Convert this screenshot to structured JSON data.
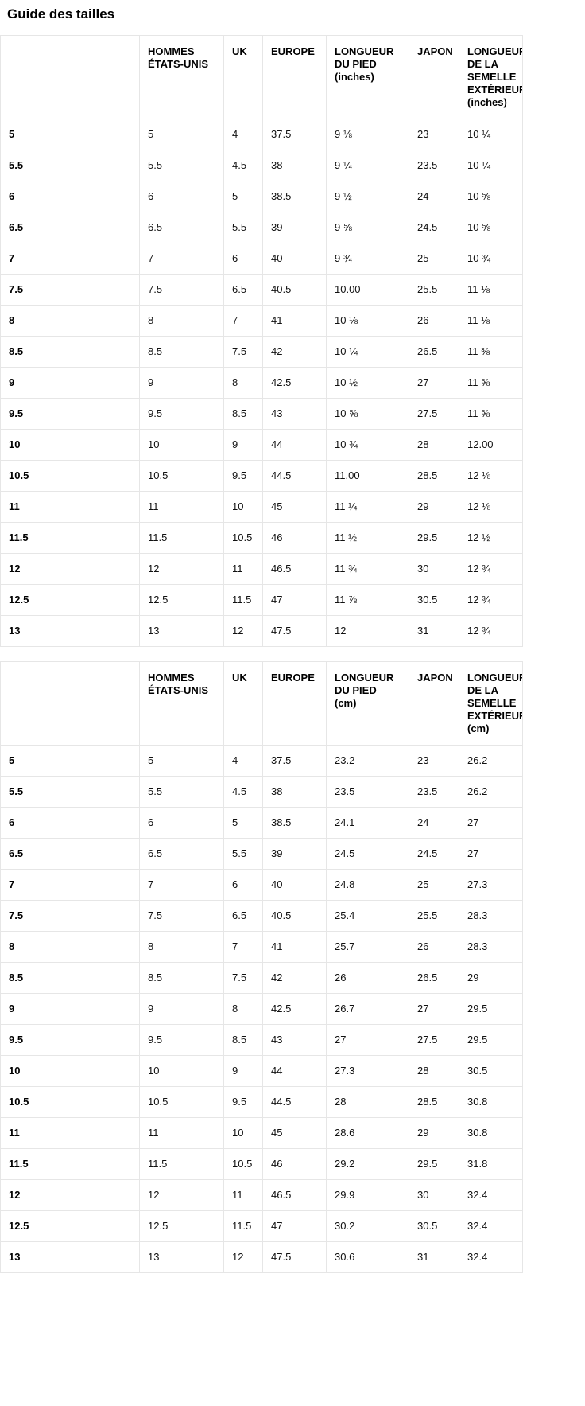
{
  "page": {
    "title": "Guide des tailles"
  },
  "tables": [
    {
      "id": "inches",
      "headers": [
        "",
        "HOMMES ÉTATS-UNIS",
        "UK",
        "EUROPE",
        "LONGUEUR DU PIED (inches)",
        "JAPON",
        "LONGUEUR DE LA SEMELLE EXTÉRIEURE (inches)"
      ],
      "rows": [
        [
          "5",
          "5",
          "4",
          "37.5",
          "9 ⅛",
          "23",
          "10 ¼"
        ],
        [
          "5.5",
          "5.5",
          "4.5",
          "38",
          "9 ¼",
          "23.5",
          "10 ¼"
        ],
        [
          "6",
          "6",
          "5",
          "38.5",
          "9 ½",
          "24",
          "10 ⅝"
        ],
        [
          "6.5",
          "6.5",
          "5.5",
          "39",
          "9 ⅝",
          "24.5",
          "10 ⅝"
        ],
        [
          "7",
          "7",
          "6",
          "40",
          "9 ¾",
          "25",
          "10 ¾"
        ],
        [
          "7.5",
          "7.5",
          "6.5",
          "40.5",
          "10.00",
          "25.5",
          "11 ⅛"
        ],
        [
          "8",
          "8",
          "7",
          "41",
          "10 ⅛",
          "26",
          "11 ⅛"
        ],
        [
          "8.5",
          "8.5",
          "7.5",
          "42",
          "10 ¼",
          "26.5",
          "11 ⅜"
        ],
        [
          "9",
          "9",
          "8",
          "42.5",
          "10 ½",
          "27",
          "11 ⅝"
        ],
        [
          "9.5",
          "9.5",
          "8.5",
          "43",
          "10 ⅝",
          "27.5",
          "11 ⅝"
        ],
        [
          "10",
          "10",
          "9",
          "44",
          "10 ¾",
          "28",
          "12.00"
        ],
        [
          "10.5",
          "10.5",
          "9.5",
          "44.5",
          "11.00",
          "28.5",
          "12 ⅛"
        ],
        [
          "11",
          "11",
          "10",
          "45",
          "11 ¼",
          "29",
          "12 ⅛"
        ],
        [
          "11.5",
          "11.5",
          "10.5",
          "46",
          "11 ½",
          "29.5",
          "12 ½"
        ],
        [
          "12",
          "12",
          "11",
          "46.5",
          "11 ¾",
          "30",
          "12 ¾"
        ],
        [
          "12.5",
          "12.5",
          "11.5",
          "47",
          "11 ⅞",
          "30.5",
          "12 ¾"
        ],
        [
          "13",
          "13",
          "12",
          "47.5",
          "12",
          "31",
          "12 ¾"
        ]
      ]
    },
    {
      "id": "cm",
      "headers": [
        "",
        "HOMMES ÉTATS-UNIS",
        "UK",
        "EUROPE",
        "LONGUEUR DU PIED (cm)",
        "JAPON",
        "LONGUEUR DE LA SEMELLE EXTÉRIEURE (cm)"
      ],
      "rows": [
        [
          "5",
          "5",
          "4",
          "37.5",
          "23.2",
          "23",
          "26.2"
        ],
        [
          "5.5",
          "5.5",
          "4.5",
          "38",
          "23.5",
          "23.5",
          "26.2"
        ],
        [
          "6",
          "6",
          "5",
          "38.5",
          "24.1",
          "24",
          "27"
        ],
        [
          "6.5",
          "6.5",
          "5.5",
          "39",
          "24.5",
          "24.5",
          "27"
        ],
        [
          "7",
          "7",
          "6",
          "40",
          "24.8",
          "25",
          "27.3"
        ],
        [
          "7.5",
          "7.5",
          "6.5",
          "40.5",
          "25.4",
          "25.5",
          "28.3"
        ],
        [
          "8",
          "8",
          "7",
          "41",
          "25.7",
          "26",
          "28.3"
        ],
        [
          "8.5",
          "8.5",
          "7.5",
          "42",
          "26",
          "26.5",
          "29"
        ],
        [
          "9",
          "9",
          "8",
          "42.5",
          "26.7",
          "27",
          "29.5"
        ],
        [
          "9.5",
          "9.5",
          "8.5",
          "43",
          "27",
          "27.5",
          "29.5"
        ],
        [
          "10",
          "10",
          "9",
          "44",
          "27.3",
          "28",
          "30.5"
        ],
        [
          "10.5",
          "10.5",
          "9.5",
          "44.5",
          "28",
          "28.5",
          "30.8"
        ],
        [
          "11",
          "11",
          "10",
          "45",
          "28.6",
          "29",
          "30.8"
        ],
        [
          "11.5",
          "11.5",
          "10.5",
          "46",
          "29.2",
          "29.5",
          "31.8"
        ],
        [
          "12",
          "12",
          "11",
          "46.5",
          "29.9",
          "30",
          "32.4"
        ],
        [
          "12.5",
          "12.5",
          "11.5",
          "47",
          "30.2",
          "30.5",
          "32.4"
        ],
        [
          "13",
          "13",
          "12",
          "47.5",
          "30.6",
          "31",
          "32.4"
        ]
      ]
    }
  ]
}
